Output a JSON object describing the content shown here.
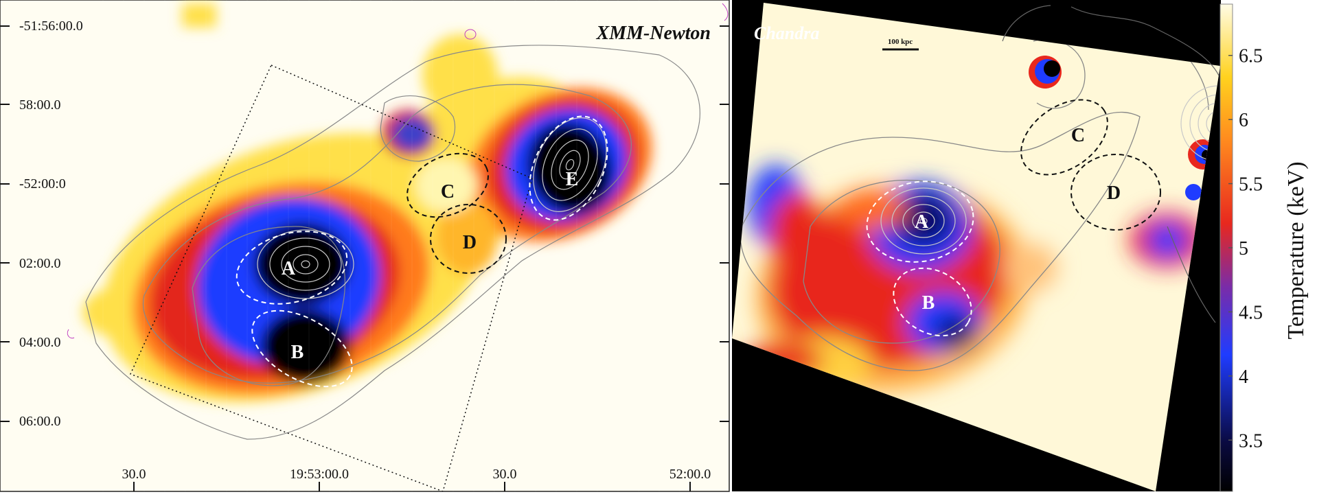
{
  "left_panel": {
    "title": "XMM-Newton",
    "dec_labels": [
      "-51:56:00.0",
      "58:00.0",
      "-52:00:0",
      "02:00.0",
      "04:00.0",
      "06:00.0"
    ],
    "ra_labels": [
      "30.0",
      "19:53:00.0",
      "30.0",
      "52:00.0"
    ],
    "regions": [
      "A",
      "B",
      "C",
      "D",
      "E"
    ]
  },
  "right_panel": {
    "title": "Chandra",
    "scale_bar_label": "100 kpc",
    "regions": [
      "A",
      "B",
      "C",
      "D"
    ]
  },
  "colorbar": {
    "title": "Temperature (keV)",
    "ticks": [
      "6.5",
      "6",
      "5.5",
      "5",
      "4.5",
      "4",
      "3.5"
    ],
    "range_keV": [
      3.1,
      6.9
    ],
    "colors": {
      "low": "#000000",
      "mid_low": "#1f3cff",
      "mid": "#e8281e",
      "mid_high": "#ffd21e",
      "high": "#fffce6"
    }
  }
}
